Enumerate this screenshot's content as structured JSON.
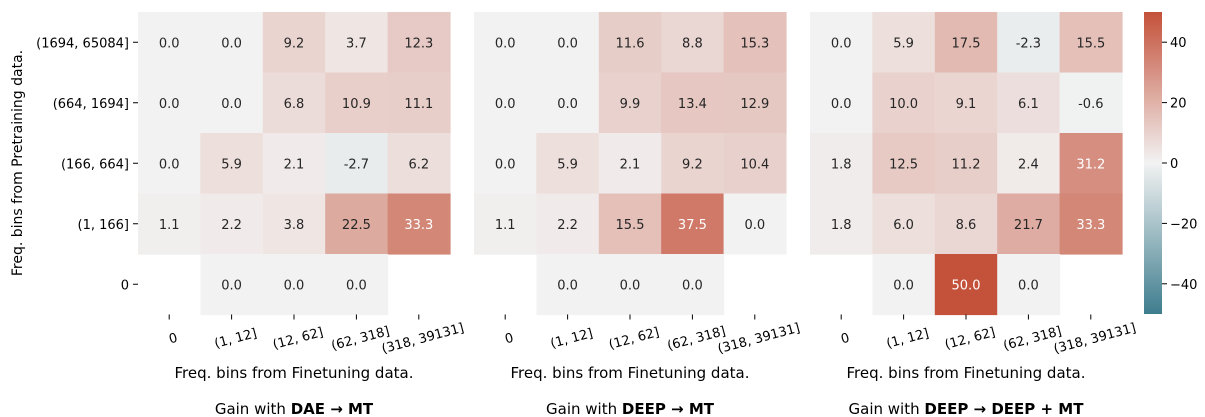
{
  "chart_data": [
    {
      "type": "heatmap",
      "title_prefix": "Gain with ",
      "title_bold": "DAE → MT",
      "xlabel": "Freq. bins from Finetuning data.",
      "ylabel": "Freq. bins from Pretraining data.",
      "x_categories": [
        "0",
        "(1, 12]",
        "(12, 62]",
        "(62, 318]",
        "(318, 39131]"
      ],
      "y_categories": [
        "(1694, 65084]",
        "(664, 1694]",
        "(166, 664]",
        "(1, 166]",
        "0"
      ],
      "values": [
        [
          0.0,
          0.0,
          9.2,
          3.7,
          12.3
        ],
        [
          0.0,
          0.0,
          6.8,
          10.9,
          11.1
        ],
        [
          0.0,
          5.9,
          2.1,
          -2.7,
          6.2
        ],
        [
          1.1,
          2.2,
          3.8,
          22.5,
          33.3
        ],
        [
          null,
          0.0,
          0.0,
          0.0,
          null
        ]
      ]
    },
    {
      "type": "heatmap",
      "title_prefix": "Gain with ",
      "title_bold": "DEEP → MT",
      "xlabel": "Freq. bins from Finetuning data.",
      "x_categories": [
        "0",
        "(1, 12]",
        "(12, 62]",
        "(62, 318]",
        "(318, 39131]"
      ],
      "values": [
        [
          0.0,
          0.0,
          11.6,
          8.8,
          15.3
        ],
        [
          0.0,
          0.0,
          9.9,
          13.4,
          12.9
        ],
        [
          0.0,
          5.9,
          2.1,
          9.2,
          10.4
        ],
        [
          1.1,
          2.2,
          15.5,
          37.5,
          0.0
        ],
        [
          null,
          0.0,
          0.0,
          0.0,
          null
        ]
      ]
    },
    {
      "type": "heatmap",
      "title_prefix": "Gain with ",
      "title_bold": "DEEP → DEEP + MT",
      "xlabel": "Freq. bins from Finetuning data.",
      "x_categories": [
        "0",
        "(1, 12]",
        "(12, 62]",
        "(62, 318]",
        "(318, 39131]"
      ],
      "values": [
        [
          0.0,
          5.9,
          17.5,
          -2.3,
          15.5
        ],
        [
          0.0,
          10.0,
          9.1,
          6.1,
          -0.6
        ],
        [
          1.8,
          12.5,
          11.2,
          2.4,
          31.2
        ],
        [
          1.8,
          6.0,
          8.6,
          21.7,
          33.3
        ],
        [
          null,
          0.0,
          50.0,
          0.0,
          null
        ]
      ]
    }
  ],
  "colorbar": {
    "vmin": -50,
    "vmax": 50,
    "ticks": [
      "40",
      "20",
      "0",
      "−20",
      "−40"
    ],
    "tick_values": [
      40,
      20,
      0,
      -20,
      -40
    ],
    "colors": {
      "negative": "#3e7d8e",
      "center": "#f2f2f2",
      "positive": "#c4513a"
    }
  }
}
